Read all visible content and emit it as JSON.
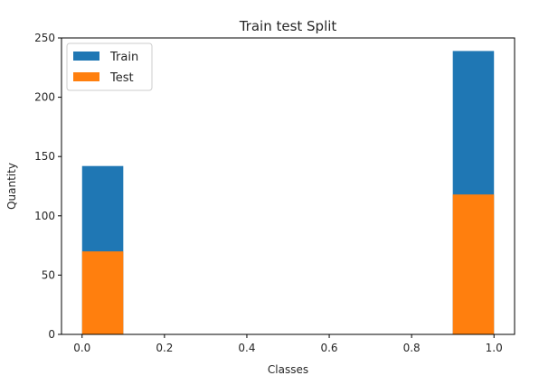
{
  "chart_data": {
    "type": "bar",
    "title": "Train test Split",
    "xlabel": "Classes",
    "ylabel": "Quantity",
    "xlim": [
      -0.05,
      1.05
    ],
    "ylim": [
      0,
      250
    ],
    "xticks": [
      "0.0",
      "0.2",
      "0.4",
      "0.6",
      "0.8",
      "1.0"
    ],
    "yticks": [
      "0",
      "50",
      "100",
      "150",
      "200",
      "250"
    ],
    "grid": false,
    "legend": "top-left",
    "series": [
      {
        "name": "Train",
        "color": "#1f77b4",
        "bars": [
          {
            "x_start": 0.0,
            "x_end": 0.1,
            "value": 142
          },
          {
            "x_start": 0.9,
            "x_end": 1.0,
            "value": 239
          }
        ]
      },
      {
        "name": "Test",
        "color": "#ff7f0e",
        "bars": [
          {
            "x_start": 0.0,
            "x_end": 0.1,
            "value": 70
          },
          {
            "x_start": 0.9,
            "x_end": 1.0,
            "value": 118
          }
        ]
      }
    ]
  }
}
